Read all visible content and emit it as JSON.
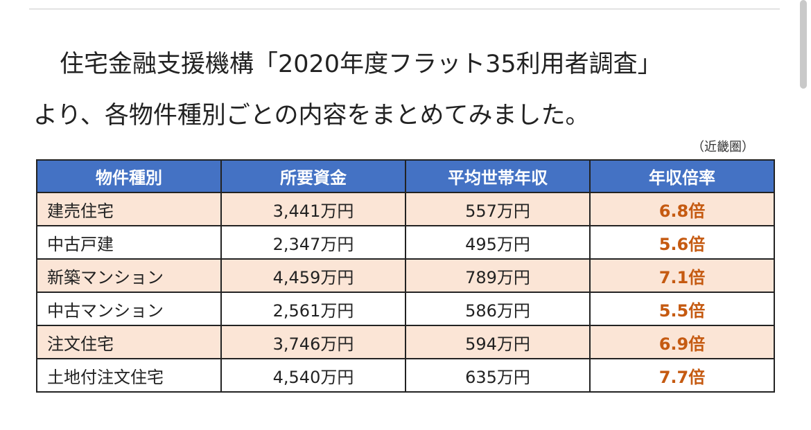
{
  "intro": {
    "line1": "住宅金融支援機構「2020年度フラット35利用者調査」",
    "line2": "より、各物件種別ごとの内容をまとめてみました。"
  },
  "region_note": "（近畿圏）",
  "table": {
    "headers": [
      "物件種別",
      "所要資金",
      "平均世帯年収",
      "年収倍率"
    ],
    "rows": [
      {
        "type": "建売住宅",
        "funds": "3,441万円",
        "income": "557万円",
        "ratio": "6.8倍"
      },
      {
        "type": "中古戸建",
        "funds": "2,347万円",
        "income": "495万円",
        "ratio": "5.6倍"
      },
      {
        "type": "新築マンション",
        "funds": "4,459万円",
        "income": "789万円",
        "ratio": "7.1倍"
      },
      {
        "type": "中古マンション",
        "funds": "2,561万円",
        "income": "586万円",
        "ratio": "5.5倍"
      },
      {
        "type": "注文住宅",
        "funds": "3,746万円",
        "income": "594万円",
        "ratio": "6.9倍"
      },
      {
        "type": "土地付注文住宅",
        "funds": "4,540万円",
        "income": "635万円",
        "ratio": "7.7倍"
      }
    ]
  },
  "colors": {
    "header_bg": "#4472c4",
    "header_text": "#ffffff",
    "shaded_row_bg": "#fbe5d6",
    "ratio_text": "#c55a11"
  }
}
